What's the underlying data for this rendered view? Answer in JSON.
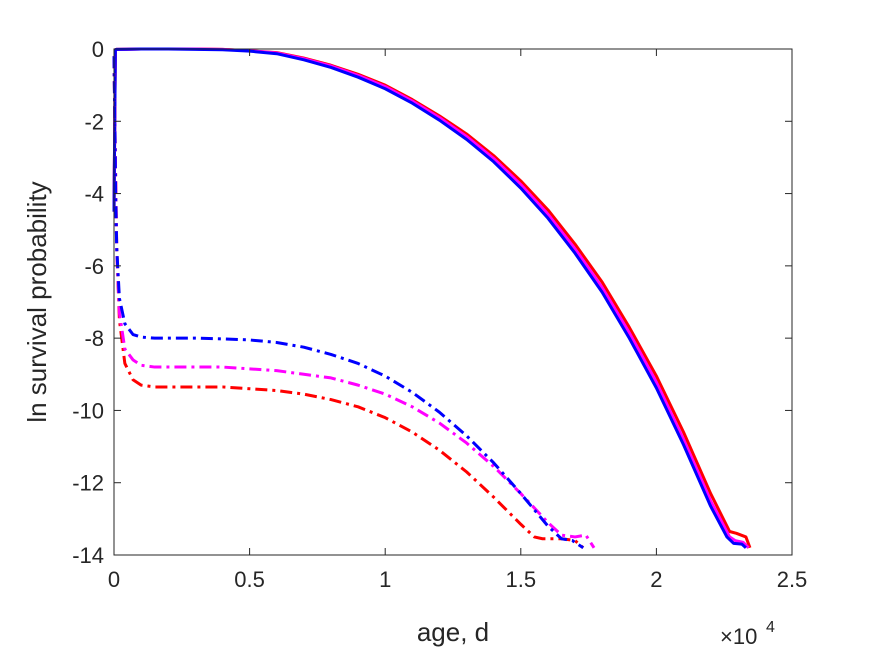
{
  "chart_data": {
    "type": "line",
    "xlabel": "age, d",
    "ylabel": "ln survival probability",
    "x_exponent": {
      "base": "×10",
      "power": "4"
    },
    "xlim": [
      0,
      25000
    ],
    "ylim": [
      -14,
      0
    ],
    "x_ticks": [
      0,
      5000,
      10000,
      15000,
      20000,
      25000
    ],
    "x_tick_labels": [
      "0",
      "0.5",
      "1",
      "1.5",
      "2",
      "2.5"
    ],
    "y_ticks": [
      0,
      -2,
      -4,
      -6,
      -8,
      -10,
      -12,
      -14
    ],
    "y_tick_labels": [
      "0",
      "-2",
      "-4",
      "-6",
      "-8",
      "-10",
      "-12",
      "-14"
    ],
    "grid": false,
    "series": [
      {
        "color": "#ff0000",
        "style": "solid",
        "width": 3,
        "x": [
          0,
          50,
          100,
          1000,
          2000,
          3000,
          4000,
          5000,
          6000,
          7000,
          8000,
          9000,
          10000,
          11000,
          12000,
          13000,
          14000,
          15000,
          16000,
          17000,
          18000,
          19000,
          20000,
          21000,
          22000,
          22700,
          22950,
          23300,
          23450
        ],
        "y": [
          -4.5,
          -0.02,
          -0.01,
          0,
          0,
          0,
          -0.01,
          -0.05,
          -0.1,
          -0.25,
          -0.45,
          -0.7,
          -1.0,
          -1.4,
          -1.85,
          -2.35,
          -2.95,
          -3.65,
          -4.45,
          -5.4,
          -6.45,
          -7.7,
          -9.05,
          -10.6,
          -12.3,
          -13.35,
          -13.4,
          -13.5,
          -13.8
        ]
      },
      {
        "color": "#ff00ff",
        "style": "solid",
        "width": 3,
        "x": [
          0,
          50,
          100,
          1000,
          2000,
          3000,
          4000,
          5000,
          6000,
          7000,
          8000,
          9000,
          10000,
          11000,
          12000,
          13000,
          14000,
          15000,
          16000,
          17000,
          18000,
          19000,
          20000,
          21000,
          22000,
          22700,
          22900,
          23200,
          23400
        ],
        "y": [
          -4.5,
          -0.02,
          -0.01,
          0,
          0,
          0,
          -0.01,
          -0.05,
          -0.11,
          -0.27,
          -0.47,
          -0.73,
          -1.04,
          -1.44,
          -1.9,
          -2.42,
          -3.03,
          -3.75,
          -4.57,
          -5.53,
          -6.6,
          -7.85,
          -9.22,
          -10.8,
          -12.5,
          -13.5,
          -13.6,
          -13.65,
          -13.8
        ]
      },
      {
        "color": "#0000ff",
        "style": "solid",
        "width": 3,
        "x": [
          0,
          50,
          100,
          1000,
          2000,
          3000,
          4000,
          5000,
          6000,
          7000,
          8000,
          9000,
          10000,
          11000,
          12000,
          13000,
          14000,
          15000,
          16000,
          17000,
          18000,
          19000,
          20000,
          21000,
          22000,
          22600,
          22850,
          23150,
          23300
        ],
        "y": [
          -4.5,
          -0.02,
          -0.01,
          0,
          0,
          -0.01,
          -0.02,
          -0.06,
          -0.13,
          -0.3,
          -0.51,
          -0.78,
          -1.1,
          -1.5,
          -1.97,
          -2.5,
          -3.12,
          -3.85,
          -4.68,
          -5.65,
          -6.73,
          -8.0,
          -9.38,
          -10.95,
          -12.65,
          -13.5,
          -13.68,
          -13.7,
          -13.8
        ]
      },
      {
        "color": "#ff0000",
        "style": "dashdot",
        "width": 3,
        "x": [
          0,
          50,
          100,
          200,
          400,
          700,
          1000,
          1500,
          2000,
          3000,
          4000,
          5000,
          6000,
          7000,
          8000,
          9000,
          10000,
          11000,
          12000,
          13000,
          14000,
          15000,
          15500,
          15800,
          16500,
          17000,
          17300
        ],
        "y": [
          -0.2,
          -3.0,
          -5.5,
          -7.5,
          -8.7,
          -9.15,
          -9.3,
          -9.35,
          -9.35,
          -9.35,
          -9.35,
          -9.4,
          -9.45,
          -9.55,
          -9.7,
          -9.9,
          -10.2,
          -10.6,
          -11.1,
          -11.7,
          -12.4,
          -13.15,
          -13.5,
          -13.55,
          -13.55,
          -13.6,
          -13.8
        ]
      },
      {
        "color": "#ff00ff",
        "style": "dashdot",
        "width": 3,
        "x": [
          0,
          50,
          100,
          200,
          400,
          700,
          1000,
          1500,
          2000,
          3000,
          4000,
          5000,
          6000,
          7000,
          8000,
          9000,
          10000,
          11000,
          12000,
          13000,
          14000,
          15000,
          16000,
          16500,
          17000,
          17400,
          17700
        ],
        "y": [
          -0.2,
          -3.0,
          -5.5,
          -7.3,
          -8.3,
          -8.6,
          -8.75,
          -8.8,
          -8.8,
          -8.8,
          -8.8,
          -8.85,
          -8.9,
          -9.0,
          -9.1,
          -9.3,
          -9.55,
          -9.9,
          -10.35,
          -10.9,
          -11.55,
          -12.3,
          -13.1,
          -13.45,
          -13.5,
          -13.45,
          -13.8
        ]
      },
      {
        "color": "#0000ff",
        "style": "dashdot",
        "width": 3,
        "x": [
          0,
          30,
          60,
          100,
          200,
          400,
          700,
          1000,
          1500,
          2000,
          3000,
          4000,
          5000,
          6000,
          7000,
          8000,
          9000,
          10000,
          11000,
          12000,
          13000,
          14000,
          15000,
          16000,
          16500,
          16900,
          17300
        ],
        "y": [
          -0.2,
          -2.0,
          -4.0,
          -5.5,
          -6.9,
          -7.6,
          -7.9,
          -7.97,
          -8.0,
          -8.0,
          -8.0,
          -8.02,
          -8.05,
          -8.12,
          -8.25,
          -8.45,
          -8.7,
          -9.05,
          -9.5,
          -10.05,
          -10.7,
          -11.45,
          -12.3,
          -13.2,
          -13.55,
          -13.6,
          -13.8
        ]
      }
    ]
  }
}
